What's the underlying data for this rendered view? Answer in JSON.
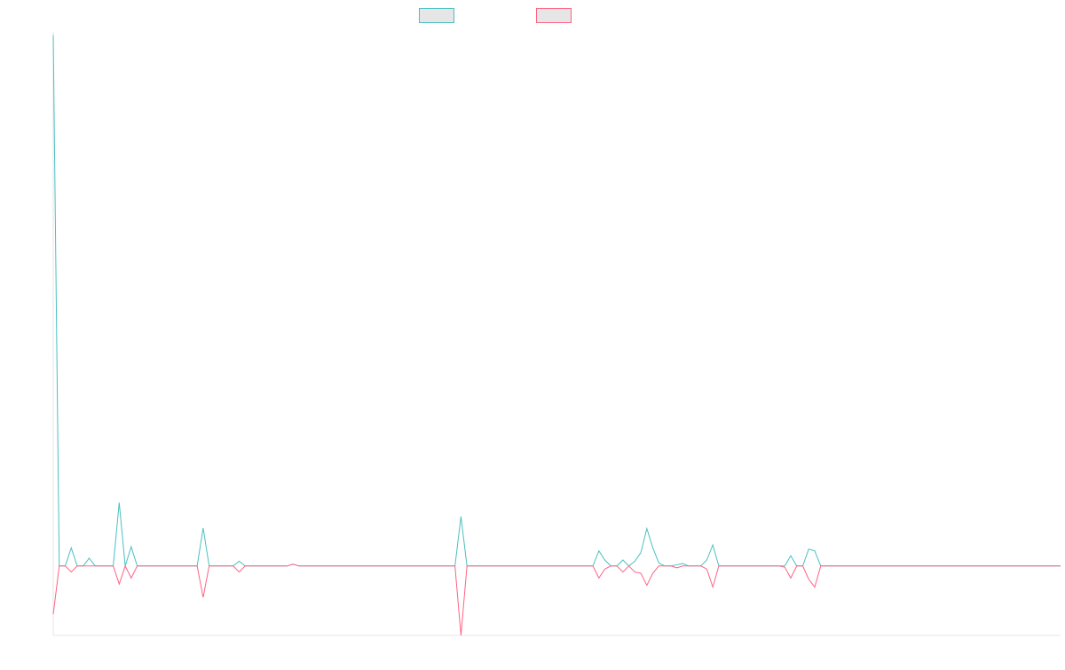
{
  "chart_data": {
    "type": "line",
    "title": "",
    "xlabel": "",
    "ylabel": "",
    "legend": "top-center",
    "grid": false,
    "ylim": [
      -1.15,
      8.85
    ],
    "series": [
      {
        "name": "",
        "color": "#4bc0c0",
        "values": [
          8.8,
          0,
          0,
          0.3,
          0,
          0,
          0.13,
          0,
          0,
          0,
          0,
          1.05,
          0,
          0.32,
          0,
          0,
          0,
          0,
          0,
          0,
          0,
          0,
          0,
          0,
          0,
          0.63,
          0,
          0,
          0,
          0,
          0,
          0.08,
          0,
          0,
          0,
          0,
          0,
          0,
          0,
          0,
          0.03,
          0,
          0,
          0,
          0,
          0,
          0,
          0,
          0,
          0,
          0,
          0,
          0,
          0,
          0,
          0,
          0,
          0,
          0,
          0,
          0,
          0,
          0,
          0,
          0,
          0,
          0,
          0,
          0.82,
          0,
          0,
          0,
          0,
          0,
          0,
          0,
          0,
          0,
          0,
          0,
          0,
          0,
          0,
          0,
          0,
          0,
          0,
          0,
          0,
          0,
          0,
          0.25,
          0.1,
          0,
          0,
          0.1,
          0,
          0.08,
          0.22,
          0.62,
          0.3,
          0.05,
          0,
          0,
          0.02,
          0.04,
          0,
          0,
          0,
          0.1,
          0.35,
          0,
          0,
          0,
          0,
          0,
          0,
          0,
          0,
          0,
          0,
          0,
          0,
          0.17,
          0,
          0,
          0.28,
          0.25,
          0,
          0,
          0,
          0,
          0,
          0,
          0,
          0,
          0,
          0,
          0,
          0,
          0,
          0,
          0,
          0,
          0,
          0,
          0,
          0,
          0,
          0,
          0,
          0,
          0,
          0,
          0,
          0,
          0,
          0,
          0,
          0,
          0,
          0,
          0,
          0,
          0,
          0,
          0,
          0,
          0
        ]
      },
      {
        "name": "",
        "color": "#ff6384",
        "values": [
          -0.8,
          0,
          0,
          -0.1,
          0,
          0,
          0,
          0,
          0,
          0,
          0,
          -0.3,
          0,
          -0.2,
          0,
          0,
          0,
          0,
          0,
          0,
          0,
          0,
          0,
          0,
          0,
          -0.52,
          0,
          0,
          0,
          0,
          0,
          -0.1,
          0,
          0,
          0,
          0,
          0,
          0,
          0,
          0,
          0.03,
          0,
          0,
          0,
          0,
          0,
          0,
          0,
          0,
          0,
          0,
          0,
          0,
          0,
          0,
          0,
          0,
          0,
          0,
          0,
          0,
          0,
          0,
          0,
          0,
          0,
          0,
          0,
          -1.15,
          0,
          0,
          0,
          0,
          0,
          0,
          0,
          0,
          0,
          0,
          0,
          0,
          0,
          0,
          0,
          0,
          0,
          0,
          0,
          0,
          0,
          0,
          -0.2,
          -0.05,
          0,
          0,
          -0.1,
          0,
          -0.1,
          -0.12,
          -0.32,
          -0.12,
          0,
          0,
          0,
          -0.03,
          0,
          0,
          0,
          0,
          -0.05,
          -0.35,
          0,
          0,
          0,
          0,
          0,
          0,
          0,
          0,
          0,
          0,
          0,
          -0.02,
          -0.2,
          0,
          0,
          -0.22,
          -0.35,
          0,
          0,
          0,
          0,
          0,
          0,
          0,
          0,
          0,
          0,
          0,
          0,
          0,
          0,
          0,
          0,
          0,
          0,
          0,
          0,
          0,
          0,
          0,
          0,
          0,
          0,
          0,
          0,
          0,
          0,
          0,
          0,
          0,
          0,
          0,
          0,
          0,
          0,
          0,
          0,
          0
        ]
      }
    ]
  }
}
